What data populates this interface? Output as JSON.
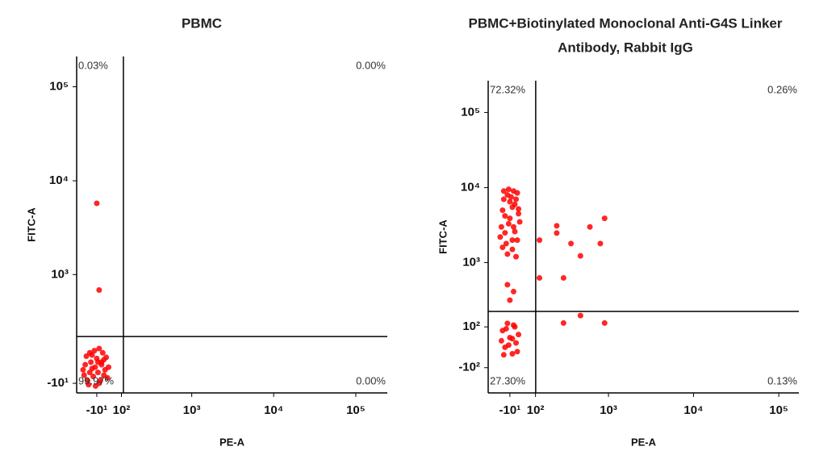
{
  "chart_data": [
    {
      "type": "scatter",
      "title": [
        "PBMC"
      ],
      "x_label": "PE-A",
      "y_label": "FITC-A",
      "color": "#ff0000",
      "scale": "biexponential",
      "xlim": [
        -101,
        242000
      ],
      "ylim": [
        -46,
        210000
      ],
      "xticks": [
        {
          "value": -10,
          "label": "-10¹"
        },
        {
          "value": 100,
          "label": "10²"
        },
        {
          "value": 1000,
          "label": "10³"
        },
        {
          "value": 10000,
          "label": "10⁴"
        },
        {
          "value": 100000,
          "label": "10⁵"
        }
      ],
      "yticks": [
        {
          "value": -10,
          "label": "-10¹"
        },
        {
          "value": 1000,
          "label": "10³"
        },
        {
          "value": 10000,
          "label": "10⁴"
        },
        {
          "value": 100000,
          "label": "10⁵"
        }
      ],
      "gate_x": 110,
      "gate_y": 195,
      "quadrant_labels": [
        "0.03%",
        "0.00%",
        "99.97%",
        "0.00%"
      ],
      "x": [
        -17,
        -40,
        10,
        -60,
        20,
        -30,
        0,
        -50,
        30,
        -20,
        -5,
        -70,
        15,
        -35,
        5,
        40,
        -45,
        -10,
        25,
        -25,
        -55,
        0,
        35,
        -15,
        -65,
        10,
        -30,
        20,
        -40,
        -5,
        -10,
        0
      ],
      "y": [
        50,
        30,
        70,
        60,
        20,
        100,
        -10,
        0,
        90,
        120,
        30,
        40,
        110,
        70,
        0,
        50,
        -15,
        85,
        40,
        15,
        95,
        130,
        10,
        -20,
        20,
        60,
        45,
        80,
        110,
        70,
        5760,
        680
      ]
    },
    {
      "type": "scatter",
      "title": [
        "PBMC+Biotinylated Monoclonal Anti-G4S Linker",
        "Antibody, Rabbit IgG"
      ],
      "x_label": "PE-A",
      "y_label": "FITC-A",
      "color": "#ff0000",
      "scale": "biexponential",
      "xlim": [
        -105,
        172000
      ],
      "ylim": [
        -285,
        265000
      ],
      "xticks": [
        {
          "value": -10,
          "label": "-10¹"
        },
        {
          "value": 100,
          "label": "10²"
        },
        {
          "value": 1000,
          "label": "10³"
        },
        {
          "value": 10000,
          "label": "10⁴"
        },
        {
          "value": 100000,
          "label": "10⁵"
        }
      ],
      "yticks": [
        {
          "value": -100,
          "label": "-10²"
        },
        {
          "value": 100,
          "label": "10²"
        },
        {
          "value": 1000,
          "label": "10³"
        },
        {
          "value": 10000,
          "label": "10⁴"
        },
        {
          "value": 100000,
          "label": "10⁵"
        }
      ],
      "gate_x": 101,
      "gate_y": 200,
      "quadrant_labels": [
        "72.32%",
        "0.26%",
        "27.30%",
        "0.13%"
      ],
      "x": [
        -10,
        -30,
        10,
        -40,
        20,
        -20,
        0,
        -45,
        25,
        -15,
        5,
        -35,
        15,
        -25,
        0,
        30,
        -50,
        -5,
        20,
        -30,
        10,
        -20,
        -10,
        5,
        -40,
        25,
        -15,
        0,
        -35,
        15,
        -10,
        -30,
        10,
        -40,
        20,
        -20,
        0,
        -45,
        25,
        -15,
        5,
        -35,
        15,
        -25,
        0,
        -10,
        -20,
        5,
        226,
        460,
        900,
        280,
        460,
        900,
        226,
        350,
        600,
        280,
        120,
        120,
        800
      ],
      "y": [
        3900,
        2500,
        6000,
        5000,
        2000,
        8000,
        1500,
        3000,
        4500,
        9500,
        3000,
        7000,
        1200,
        1800,
        5500,
        3500,
        2200,
        7500,
        8500,
        4200,
        2600,
        1300,
        6500,
        9000,
        1600,
        5200,
        3300,
        2000,
        9000,
        7000,
        45,
        0,
        100,
        80,
        -20,
        120,
        -30,
        30,
        60,
        10,
        110,
        -35,
        20,
        90,
        40,
        300,
        500,
        400,
        3100,
        1230,
        3900,
        620,
        170,
        122,
        2480,
        1800,
        3000,
        122,
        620,
        2000,
        1800
      ]
    }
  ]
}
